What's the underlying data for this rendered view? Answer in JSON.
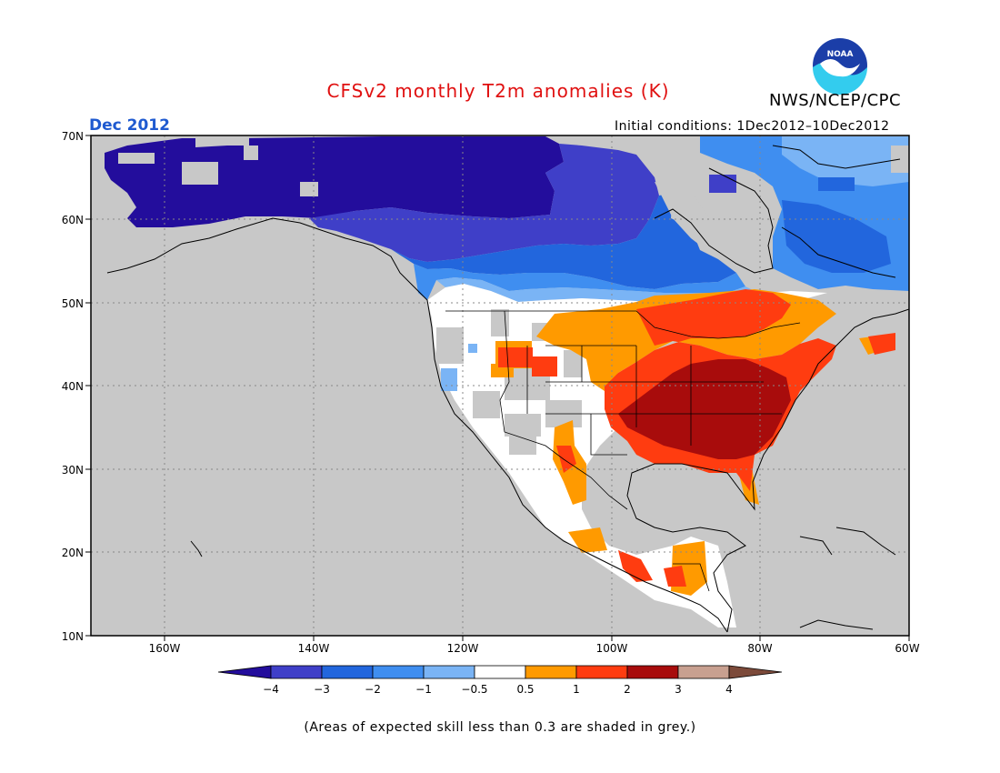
{
  "header": {
    "title": "CFSv2 monthly T2m anomalies (K)",
    "agency": "NWS/NCEP/CPC",
    "logo_text": "NOAA",
    "month_label": "Dec 2012",
    "initial_conditions": "Initial conditions: 1Dec2012–10Dec2012"
  },
  "map": {
    "lat_labels": [
      "70N",
      "60N",
      "50N",
      "40N",
      "30N",
      "20N",
      "10N"
    ],
    "lon_labels": [
      "160W",
      "140W",
      "120W",
      "100W",
      "80W",
      "60W"
    ],
    "lat_range": [
      10,
      70
    ],
    "lon_range": [
      -171,
      -60
    ],
    "skill_mask_color": "#c8c8c8"
  },
  "colorbar": {
    "tick_labels": [
      "−4",
      "−3",
      "−2",
      "−1",
      "−0.5",
      "0.5",
      "1",
      "2",
      "3",
      "4"
    ],
    "colors": [
      "#230d9c",
      "#3f3fc8",
      "#2266dd",
      "#3f8ef0",
      "#7ab4f5",
      "#ffffff",
      "#ff9a00",
      "#ff3c10",
      "#a80c0c",
      "#c8a090",
      "#7c4a3a"
    ]
  },
  "footnote": "(Areas of expected skill less than 0.3 are shaded in grey.)"
}
